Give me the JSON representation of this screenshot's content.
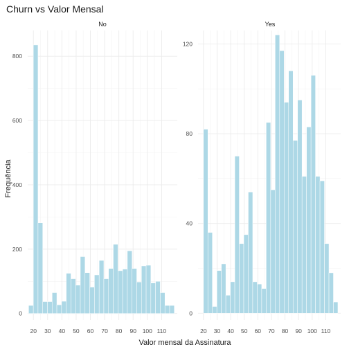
{
  "chart_data": {
    "type": "bar",
    "title": "Churn vs Valor Mensal",
    "xlabel": "Valor mensal da Assinatura",
    "ylabel": "Frequência",
    "bar_color": "#add8e6",
    "x_ticks": [
      20,
      30,
      40,
      50,
      60,
      70,
      80,
      90,
      100,
      110
    ],
    "xlim": [
      16,
      121
    ],
    "bin_width": 3.3,
    "bin_centers": [
      18.3,
      21.6,
      24.9,
      28.2,
      31.5,
      34.8,
      38.1,
      41.4,
      44.7,
      48.0,
      51.3,
      54.6,
      57.9,
      61.2,
      64.5,
      67.8,
      71.1,
      74.4,
      77.7,
      81.0,
      84.3,
      87.6,
      90.9,
      94.2,
      97.5,
      100.8,
      104.1,
      107.4,
      110.7,
      114.0,
      117.3
    ],
    "panels": [
      {
        "label": "No",
        "y_ticks": [
          0,
          200,
          400,
          600,
          800
        ],
        "ylim": [
          -20,
          880
        ],
        "values": [
          25,
          835,
          282,
          37,
          37,
          65,
          27,
          38,
          125,
          108,
          88,
          177,
          127,
          82,
          120,
          165,
          108,
          140,
          215,
          133,
          138,
          195,
          140,
          98,
          148,
          150,
          95,
          100,
          65,
          25,
          25
        ]
      },
      {
        "label": "Yes",
        "y_ticks": [
          0,
          40,
          80,
          120
        ],
        "ylim": [
          -3,
          126
        ],
        "values": [
          0,
          82,
          36,
          3,
          19,
          22,
          8,
          14,
          70,
          31,
          35,
          54,
          14,
          13,
          11,
          85,
          55,
          124,
          117,
          94,
          108,
          77,
          95,
          61,
          83,
          106,
          61,
          59,
          31,
          18,
          5
        ]
      }
    ]
  }
}
